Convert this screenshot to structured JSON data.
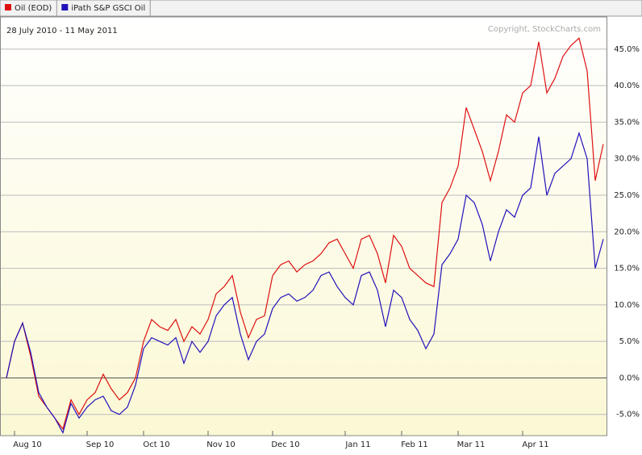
{
  "chart_data": {
    "type": "line",
    "subtitle": "28 July 2010 - 11 May 2011",
    "annotation": "Copyright, StockCharts.com",
    "categories": [
      null,
      "Aug 10",
      null,
      null,
      null,
      null,
      null,
      null,
      null,
      null,
      "Sep 10",
      null,
      null,
      null,
      null,
      null,
      null,
      "Oct 10",
      null,
      null,
      null,
      null,
      null,
      null,
      null,
      "Nov 10",
      null,
      null,
      null,
      null,
      null,
      null,
      null,
      "Dec 10",
      null,
      null,
      null,
      null,
      null,
      null,
      null,
      null,
      "Jan 11",
      null,
      null,
      null,
      null,
      null,
      null,
      "Feb 11",
      null,
      null,
      null,
      null,
      null,
      null,
      "Mar 11",
      null,
      null,
      null,
      null,
      null,
      null,
      null,
      "Apr 11",
      null,
      null,
      null,
      null,
      null,
      null,
      null,
      null,
      null,
      null
    ],
    "series": [
      {
        "name": "Oil (EOD)",
        "color": "#dd1111",
        "values": [
          0,
          5,
          7.5,
          3,
          -2.5,
          -4,
          -5.5,
          -7,
          -3,
          -5,
          -3,
          -2,
          0.5,
          -1.5,
          -3,
          -2,
          0,
          5,
          8,
          7,
          6.5,
          8,
          5,
          7,
          6,
          8,
          11.5,
          12.5,
          14,
          9,
          5.5,
          8,
          8.5,
          14,
          15.5,
          16,
          14.5,
          15.5,
          16,
          17,
          18.5,
          19,
          17,
          15,
          19,
          19.5,
          17,
          13,
          19.5,
          18,
          15,
          14,
          13,
          12.5,
          24,
          26,
          29,
          37,
          34,
          31,
          27,
          31,
          36,
          35,
          39,
          40,
          46,
          39,
          41,
          44,
          45.5,
          46.5,
          42,
          27,
          32
        ]
      },
      {
        "name": "iPath S&P GSCI Oil",
        "color": "#2211bb",
        "values": [
          0,
          5,
          7.5,
          3.5,
          -2,
          -4,
          -5.5,
          -7.5,
          -3.5,
          -5.5,
          -4,
          -3,
          -2.5,
          -4.5,
          -5,
          -4,
          -1,
          4,
          5.5,
          5,
          4.5,
          5.5,
          2,
          5,
          3.5,
          5,
          8.5,
          10,
          11,
          6,
          2.5,
          5,
          6,
          9.5,
          11,
          11.5,
          10.5,
          11,
          12,
          14,
          14.5,
          12.5,
          11,
          10,
          14,
          14.5,
          12,
          7,
          12,
          11,
          8,
          6.5,
          4,
          6,
          15.5,
          17,
          19,
          25,
          24,
          21,
          16,
          20,
          23,
          22,
          25,
          26,
          33,
          25,
          28,
          29,
          30,
          33.5,
          30,
          15,
          19
        ]
      }
    ],
    "ylim": [
      -7.9,
      49.4
    ],
    "yticks": [
      {
        "value": -5,
        "label": "-5.0%"
      },
      {
        "value": 0,
        "label": "0.0%"
      },
      {
        "value": 5,
        "label": "5.0%"
      },
      {
        "value": 10,
        "label": "10.0%"
      },
      {
        "value": 15,
        "label": "15.0%"
      },
      {
        "value": 20,
        "label": "20.0%"
      },
      {
        "value": 25,
        "label": "25.0%"
      },
      {
        "value": 30,
        "label": "30.0%"
      },
      {
        "value": 35,
        "label": "35.0%"
      },
      {
        "value": 40,
        "label": "40.0%"
      },
      {
        "value": 45,
        "label": "45.0%"
      }
    ],
    "grid": true
  }
}
